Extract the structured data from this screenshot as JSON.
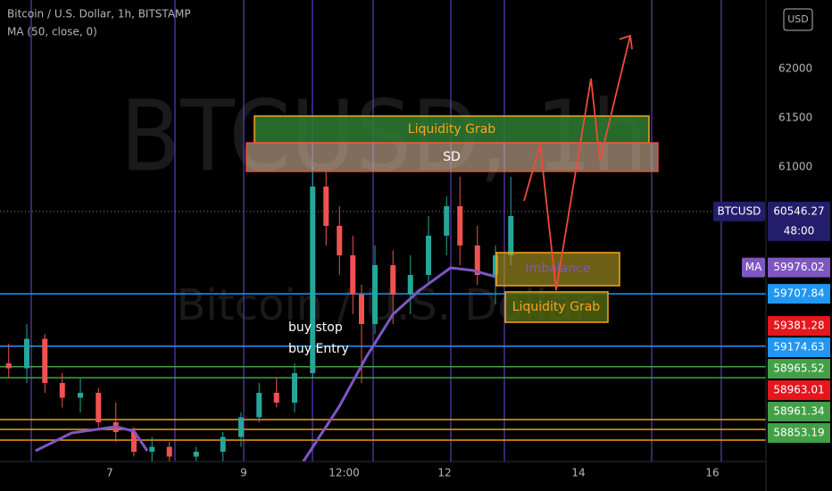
{
  "chart_data": {
    "type": "candlestick",
    "title": "Bitcoin / U.S. Dollar, 1h, BITSTAMP",
    "subtitle": "MA (50, close, 0)",
    "watermark": "BTCUSD, 1h",
    "watermark_sub": "Bitcoin / U.S. Dollar",
    "currency": "USD",
    "xlim": [
      5.36,
      16.8
    ],
    "xticks": [
      7,
      9,
      {
        "value": 10.5,
        "label": "12:00"
      },
      12,
      14,
      16
    ],
    "ylim": [
      58000,
      62700
    ],
    "yticks": [
      61000,
      61500,
      62000
    ],
    "up_color": "#26a69a",
    "down_color": "#ef5350",
    "candles": {
      "x": [
        5.49,
        5.76,
        6.03,
        6.29,
        6.56,
        6.83,
        7.09,
        7.36,
        7.63,
        7.89,
        8.29,
        8.69,
        8.96,
        9.23,
        9.49,
        9.76,
        10.03,
        10.23,
        10.43,
        10.63,
        10.76,
        10.96,
        11.23,
        11.49,
        11.76,
        12.03,
        12.23,
        12.49,
        12.76,
        12.99
      ],
      "open": [
        59000,
        58950,
        59250,
        58800,
        58650,
        58700,
        58400,
        58300,
        58100,
        58150,
        58050,
        58100,
        58250,
        58450,
        58700,
        58600,
        58900,
        60800,
        60400,
        60100,
        59700,
        59400,
        60000,
        59700,
        59900,
        60300,
        60600,
        60200,
        59900,
        60100
      ],
      "high": [
        59200,
        59400,
        59300,
        58900,
        58850,
        58750,
        58600,
        58350,
        58250,
        58200,
        58150,
        58300,
        58500,
        58800,
        58850,
        59000,
        61000,
        60950,
        60600,
        60300,
        59800,
        60200,
        60150,
        60100,
        60500,
        60700,
        60900,
        60400,
        60200,
        60900
      ],
      "low": [
        58850,
        58800,
        58700,
        58550,
        58500,
        58350,
        58200,
        58050,
        58000,
        58000,
        58000,
        58000,
        58150,
        58400,
        58550,
        58500,
        58850,
        60200,
        59900,
        59500,
        58800,
        59300,
        59400,
        59500,
        59800,
        60100,
        60000,
        59800,
        59600,
        60000
      ],
      "close": [
        58950,
        59250,
        58800,
        58650,
        58700,
        58400,
        58300,
        58100,
        58150,
        58050,
        58100,
        58250,
        58450,
        58700,
        58600,
        58900,
        60800,
        60400,
        60100,
        59700,
        59400,
        60000,
        59700,
        59900,
        60300,
        60600,
        60200,
        59900,
        60100,
        60500
      ]
    },
    "series": [
      {
        "name": "MA",
        "color": "#7e57c2",
        "x": [
          5.89,
          6.43,
          7.09,
          7.36,
          7.56,
          8.7,
          9.89,
          10.43,
          10.83,
          11.23,
          11.63,
          12.09,
          12.43,
          12.76
        ],
        "values": [
          58109,
          58291,
          58355,
          58309,
          58109,
          null,
          58000,
          58564,
          59064,
          59500,
          59745,
          59973,
          59945,
          59882
        ]
      }
    ],
    "price_labels": [
      {
        "value": 60546.27,
        "color": "#231d6b",
        "tag": "BTCUSD",
        "extra": "48:00",
        "show_line": false
      },
      {
        "value": 59976.02,
        "color": "#7e57c2",
        "tag": "MA",
        "show_line": false
      },
      {
        "value": 59707.84,
        "color": "#2196f3",
        "show_line": true
      },
      {
        "value": 59381.28,
        "color": "#e5161d",
        "show_line": false
      },
      {
        "value": 59174.63,
        "color": "#2196f3",
        "show_line": true
      },
      {
        "value": 58965.52,
        "color": "#43a047",
        "show_line": true
      },
      {
        "value": 58963.01,
        "color": "#e5161d",
        "show_line": false
      },
      {
        "value": 58961.34,
        "color": "#43a047",
        "show_line": false
      },
      {
        "value": 58853.19,
        "color": "#43a047",
        "show_line": true
      }
    ],
    "annotations": [
      "Liquidity Grab",
      "SD",
      "Imbalance",
      "Liquidity Grab",
      "buy stop",
      "buy Entry"
    ]
  }
}
